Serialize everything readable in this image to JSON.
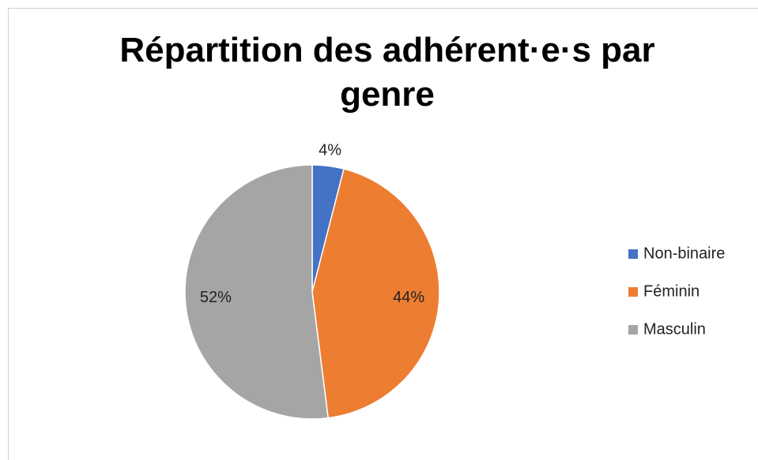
{
  "chart_data": {
    "type": "pie",
    "title": "Répartition des adhérent·e·s par genre",
    "categories": [
      "Non-binaire",
      "Féminin",
      "Masculin"
    ],
    "values": [
      4,
      44,
      52
    ],
    "value_labels": [
      "4%",
      "44%",
      "52%"
    ],
    "colors": [
      "#4472c4",
      "#ed7d31",
      "#a5a5a5"
    ],
    "legend": "right"
  }
}
